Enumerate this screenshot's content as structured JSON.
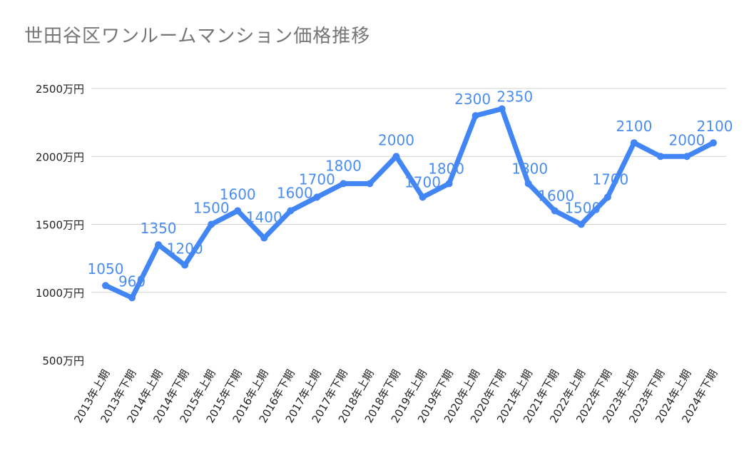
{
  "chart_data": {
    "type": "line",
    "title": "世田谷区ワンルームマンション価格推移",
    "xlabel": "",
    "ylabel": "",
    "ylim": [
      500,
      2500
    ],
    "yticks": [
      {
        "value": 500,
        "label": "500万円"
      },
      {
        "value": 1000,
        "label": "1000万円"
      },
      {
        "value": 1500,
        "label": "1500万円"
      },
      {
        "value": 2000,
        "label": "2000万円"
      },
      {
        "value": 2500,
        "label": "2500万円"
      }
    ],
    "grid": true,
    "legend": "none",
    "colors": {
      "line": "#4285f4",
      "label": "#4a8df0"
    },
    "categories": [
      "2013年上期",
      "2013年下期",
      "2014年上期",
      "2014年下期",
      "2015年上期",
      "2015年下期",
      "2016年上期",
      "2016年下期",
      "2017年上期",
      "2017年下期",
      "2018年上期",
      "2018年下期",
      "2019年上期",
      "2019年下期",
      "2020年上期",
      "2020年下期",
      "2021年上期",
      "2021年下期",
      "2022年上期",
      "2022年下期",
      "2023年上期",
      "2023年下期",
      "2024年上期",
      "2024年下期"
    ],
    "values": [
      1050,
      960,
      1350,
      1200,
      1500,
      1600,
      1400,
      1600,
      1700,
      1800,
      1800,
      2000,
      1700,
      1800,
      2300,
      2350,
      1800,
      1600,
      1500,
      1700,
      2100,
      2000,
      2000,
      2100
    ],
    "data_labels": [
      "1050",
      "960",
      "1350",
      "1200",
      "1500",
      "1600",
      "1400",
      "1600",
      "1700",
      "1800",
      "",
      "2000",
      "1700",
      "1800",
      "2300",
      "2350",
      "1800",
      "1600",
      "1500",
      "1700",
      "2100",
      "",
      "2000",
      "2100"
    ]
  }
}
